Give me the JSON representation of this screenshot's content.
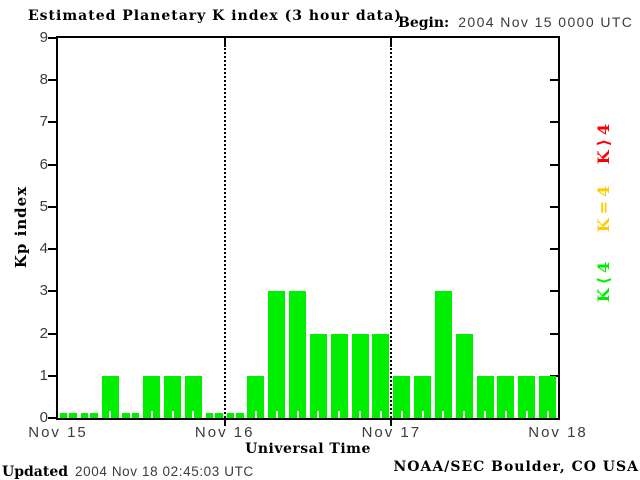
{
  "title": "Estimated Planetary K index (3 hour data)",
  "begin": {
    "label": "Begin:",
    "value": "2004 Nov 15 0000 UTC"
  },
  "chart_data": {
    "type": "bar",
    "title": "Estimated Planetary K index (3 hour data)",
    "xlabel": "Universal Time",
    "ylabel": "Kp index",
    "ylim": [
      0,
      9
    ],
    "yticks": [
      0,
      1,
      2,
      3,
      4,
      5,
      6,
      7,
      8,
      9
    ],
    "bin_hours": 3,
    "x_day_labels": [
      "Nov 15",
      "Nov 16",
      "Nov 17",
      "Nov 18"
    ],
    "series": [
      {
        "day": "Nov 15",
        "values": [
          0,
          0,
          1,
          0,
          1,
          1,
          1,
          0
        ]
      },
      {
        "day": "Nov 16",
        "values": [
          0,
          1,
          3,
          3,
          2,
          2,
          2,
          2
        ]
      },
      {
        "day": "Nov 17",
        "values": [
          1,
          1,
          3,
          2,
          1,
          1,
          1,
          1
        ]
      }
    ],
    "bar_color": "#00ee00",
    "grid": "dotted vertical lines at day boundaries",
    "legend_position": "right",
    "legend": [
      {
        "label": "K⟩4",
        "color": "#ff0000"
      },
      {
        "label": "K=4",
        "color": "#ffcc00"
      },
      {
        "label": "K⟨4",
        "color": "#00ee00"
      }
    ]
  },
  "footer": {
    "updated_label": "Updated",
    "updated_value": "2004 Nov 18 02:45:03 UTC",
    "attribution": "NOAA/SEC Boulder, CO USA"
  }
}
